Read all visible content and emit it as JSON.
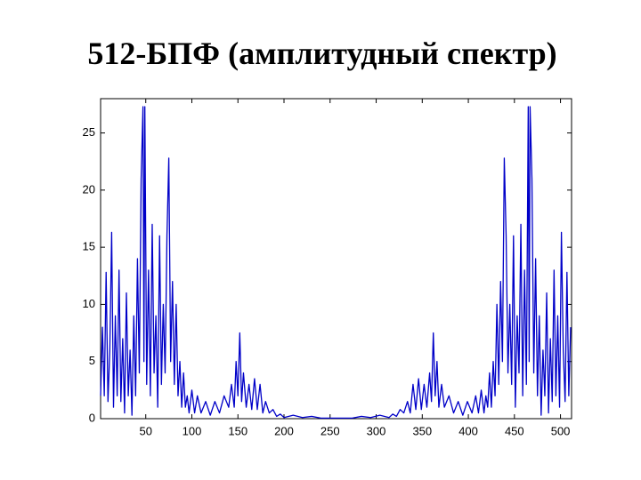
{
  "chart_data": {
    "type": "line",
    "title": "512-БПФ (амплитудный спектр)",
    "x": [
      1,
      3,
      5,
      7,
      9,
      11,
      13,
      15,
      17,
      19,
      21,
      23,
      25,
      27,
      29,
      31,
      33,
      35,
      37,
      39,
      41,
      43,
      45,
      47,
      48,
      49,
      51,
      53,
      55,
      57,
      59,
      61,
      63,
      65,
      67,
      69,
      71,
      73,
      75,
      77,
      79,
      81,
      83,
      85,
      87,
      89,
      91,
      93,
      95,
      97,
      100,
      103,
      106,
      110,
      115,
      120,
      125,
      130,
      135,
      140,
      143,
      146,
      148,
      150,
      152,
      154,
      156,
      159,
      162,
      165,
      168,
      171,
      174,
      177,
      180,
      184,
      188,
      192,
      196,
      200,
      210,
      220,
      230,
      240,
      257,
      274,
      284,
      294,
      304,
      314,
      318,
      322,
      326,
      330,
      334,
      337,
      340,
      343,
      346,
      349,
      352,
      355,
      358,
      360,
      362,
      364,
      366,
      368,
      371,
      374,
      379,
      384,
      389,
      394,
      399,
      404,
      408,
      411,
      414,
      417,
      419,
      421,
      423,
      425,
      427,
      429,
      431,
      433,
      435,
      437,
      439,
      441,
      443,
      445,
      447,
      449,
      451,
      453,
      455,
      457,
      459,
      461,
      463,
      465,
      466,
      467,
      469,
      471,
      473,
      475,
      477,
      479,
      481,
      483,
      485,
      487,
      489,
      491,
      493,
      495,
      497,
      499,
      501,
      503,
      505,
      507,
      509,
      511
    ],
    "series": [
      {
        "color": "#0000c8",
        "values": [
          2,
          8,
          2,
          12.8,
          1.5,
          6,
          16.3,
          1,
          9,
          2,
          13,
          1.5,
          7,
          0.5,
          11,
          2,
          6,
          0.3,
          9,
          2,
          14,
          4,
          21,
          27.3,
          5,
          27.3,
          3,
          13,
          2,
          17,
          4,
          9,
          1,
          16,
          3,
          10,
          4,
          16,
          22.8,
          5,
          12,
          3,
          10,
          2,
          5,
          1,
          4,
          1,
          2,
          0.5,
          2.5,
          0.5,
          2,
          0.5,
          1.5,
          0.3,
          1.5,
          0.5,
          2,
          1,
          3,
          1,
          5,
          2,
          7.5,
          1.5,
          4,
          1,
          3,
          0.8,
          3.5,
          0.8,
          3,
          0.5,
          1.5,
          0.5,
          0.8,
          0.2,
          0.4,
          0.1,
          0.3,
          0.1,
          0.2,
          0.05,
          0.05,
          0.05,
          0.2,
          0.1,
          0.3,
          0.1,
          0.4,
          0.2,
          0.8,
          0.5,
          1.5,
          0.5,
          3,
          0.8,
          3.5,
          0.8,
          3,
          1,
          4,
          1.5,
          7.5,
          2,
          5,
          1,
          3,
          1,
          2,
          0.5,
          1.5,
          0.3,
          1.5,
          0.5,
          2,
          0.5,
          2.5,
          0.5,
          2,
          1,
          4,
          1,
          5,
          2,
          10,
          3,
          12,
          5,
          22.8,
          16,
          4,
          10,
          3,
          16,
          1,
          9,
          4,
          17,
          2,
          13,
          3,
          27.3,
          5,
          27.3,
          21,
          4,
          14,
          2,
          9,
          0.3,
          6,
          2,
          11,
          0.5,
          7,
          1.5,
          13,
          2,
          9,
          1,
          16.3,
          6,
          1.5,
          12.8,
          2,
          8
        ]
      }
    ],
    "xlim": [
      1,
      512
    ],
    "ylim": [
      0,
      28
    ],
    "xticks": [
      50,
      100,
      150,
      200,
      250,
      300,
      350,
      400,
      450,
      500
    ],
    "yticks": [
      0,
      5,
      10,
      15,
      20,
      25
    ]
  }
}
